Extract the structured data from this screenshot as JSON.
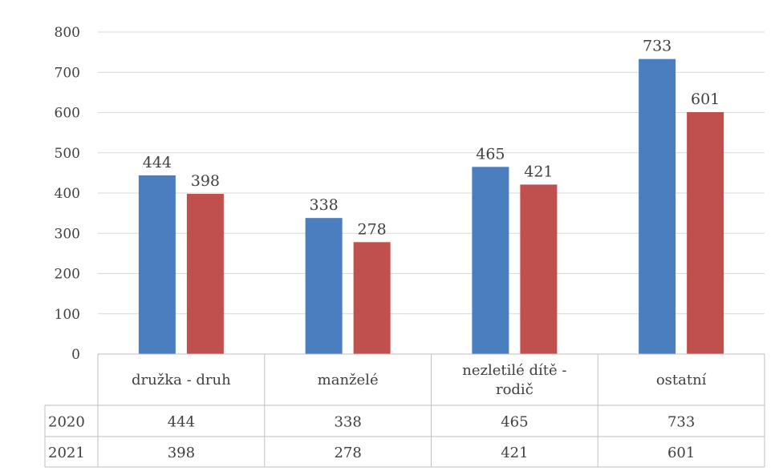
{
  "chart_data": {
    "type": "bar",
    "categories": [
      "družka - druh",
      "manželé",
      "nezletilé dítě - rodič",
      "ostatní"
    ],
    "category_lines": [
      [
        "družka - druh"
      ],
      [
        "manželé"
      ],
      [
        "nezletilé dítě -",
        "rodič"
      ],
      [
        "ostatní"
      ]
    ],
    "series": [
      {
        "name": "2020",
        "values": [
          444,
          338,
          465,
          733
        ],
        "color": "#4a7ebf"
      },
      {
        "name": "2021",
        "values": [
          398,
          278,
          421,
          601
        ],
        "color": "#c0504d"
      }
    ],
    "ylim": [
      0,
      800
    ],
    "yticks": [
      0,
      100,
      200,
      300,
      400,
      500,
      600,
      700,
      800
    ],
    "grid": true,
    "data_table": true,
    "title": "",
    "xlabel": "",
    "ylabel": ""
  }
}
